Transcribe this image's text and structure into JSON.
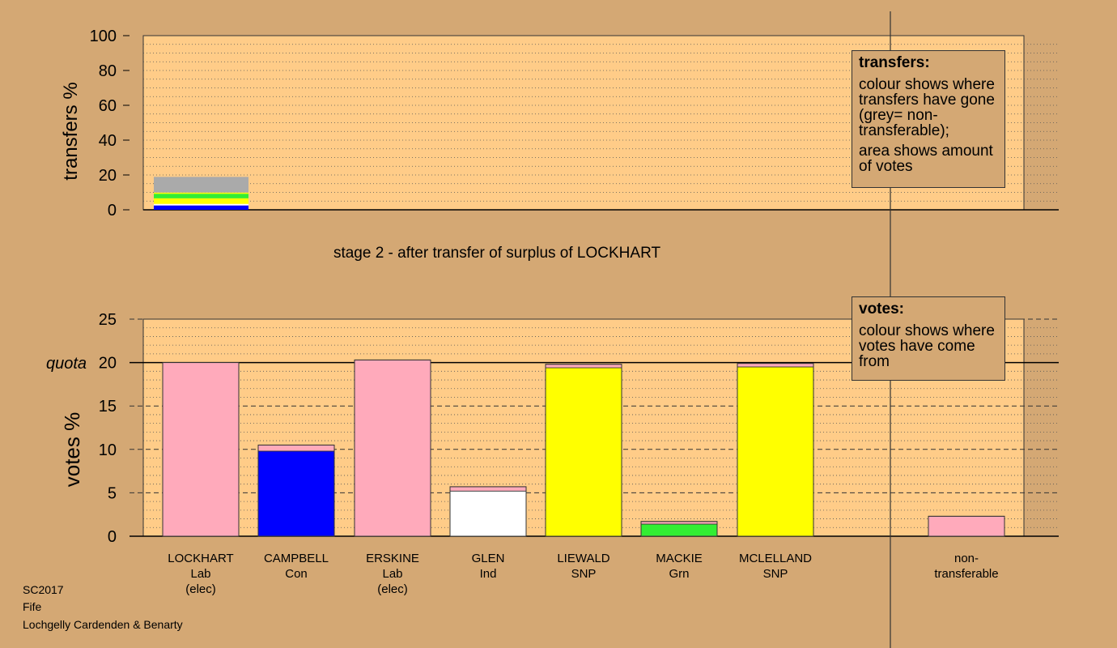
{
  "chart_data": [
    {
      "type": "bar",
      "stacked": true,
      "ylabel": "transfers %",
      "ylim": [
        0,
        100
      ],
      "yticks": [
        0,
        20,
        40,
        60,
        80,
        100
      ],
      "grid": "dotted horizontal",
      "categories": [
        "LOCKHART"
      ],
      "segments": [
        {
          "color": "#0000ff",
          "value": 2.5
        },
        {
          "color": "#ffffff",
          "value": 0.9
        },
        {
          "color": "#ffff00",
          "value": 3.2
        },
        {
          "color": "#33ee33",
          "value": 2.6
        },
        {
          "color": "#ffff00",
          "value": 0.7
        },
        {
          "color": "#aaaaaa",
          "value": 9.0
        }
      ]
    },
    {
      "type": "bar",
      "stacked": true,
      "ylabel": "votes %",
      "ylim": [
        0,
        25
      ],
      "yticks": [
        0,
        5,
        10,
        15,
        20,
        25
      ],
      "quota": 20,
      "quota_label": "quota",
      "grid": "dashed major, dotted minor",
      "categories": [
        "LOCKHART",
        "CAMPBELL",
        "ERSKINE",
        "GLEN",
        "LIEWALD",
        "MACKIE",
        "MCLELLAND",
        "non-transferable"
      ],
      "bars": [
        {
          "name": "LOCKHART",
          "segments": [
            {
              "color": "#ffaabb",
              "value": 20.0
            }
          ]
        },
        {
          "name": "CAMPBELL",
          "segments": [
            {
              "color": "#0000ff",
              "value": 9.8
            },
            {
              "color": "#ffaabb",
              "value": 0.7
            }
          ]
        },
        {
          "name": "ERSKINE",
          "segments": [
            {
              "color": "#ffaabb",
              "value": 20.3
            }
          ]
        },
        {
          "name": "GLEN",
          "segments": [
            {
              "color": "#ffffff",
              "value": 5.2
            },
            {
              "color": "#ffaabb",
              "value": 0.5
            }
          ]
        },
        {
          "name": "LIEWALD",
          "segments": [
            {
              "color": "#ffff00",
              "value": 19.4
            },
            {
              "color": "#ffaabb",
              "value": 0.4
            }
          ]
        },
        {
          "name": "MACKIE",
          "segments": [
            {
              "color": "#33ee33",
              "value": 1.4
            },
            {
              "color": "#ffaabb",
              "value": 0.3
            }
          ]
        },
        {
          "name": "MCLELLAND",
          "segments": [
            {
              "color": "#ffff00",
              "value": 19.5
            },
            {
              "color": "#ffaabb",
              "value": 0.4
            }
          ]
        },
        {
          "name": "non-transferable",
          "segments": [
            {
              "color": "#ffaabb",
              "value": 2.3
            }
          ]
        }
      ]
    }
  ],
  "stage_title": "stage 2 - after transfer of surplus of LOCKHART",
  "candidate_labels": [
    [
      "LOCKHART",
      "Lab",
      "(elec)"
    ],
    [
      "CAMPBELL",
      "Con"
    ],
    [
      "ERSKINE",
      "Lab",
      "(elec)"
    ],
    [
      "GLEN",
      "Ind"
    ],
    [
      "LIEWALD",
      "SNP"
    ],
    [
      "MACKIE",
      "Grn"
    ],
    [
      "MCLELLAND",
      "SNP"
    ],
    [
      "non-",
      "transferable"
    ]
  ],
  "transfers_legend": {
    "title": "transfers:",
    "line1": "colour shows where transfers have gone (grey= non-transferable);",
    "line2": "area shows amount of votes"
  },
  "votes_legend": {
    "title": "votes:",
    "line1": "colour shows where votes have come from"
  },
  "footer": {
    "line1": "SC2017",
    "line2": "Fife",
    "line3": "Lochgelly Cardenden & Benarty"
  },
  "colors": {
    "background": "#d4a874",
    "panel": "#ffcc88",
    "con": "#0000ff",
    "lab": "#ffaabb",
    "snp": "#ffff00",
    "grn": "#33ee33",
    "ind": "#ffffff",
    "nontransferable": "#aaaaaa"
  }
}
